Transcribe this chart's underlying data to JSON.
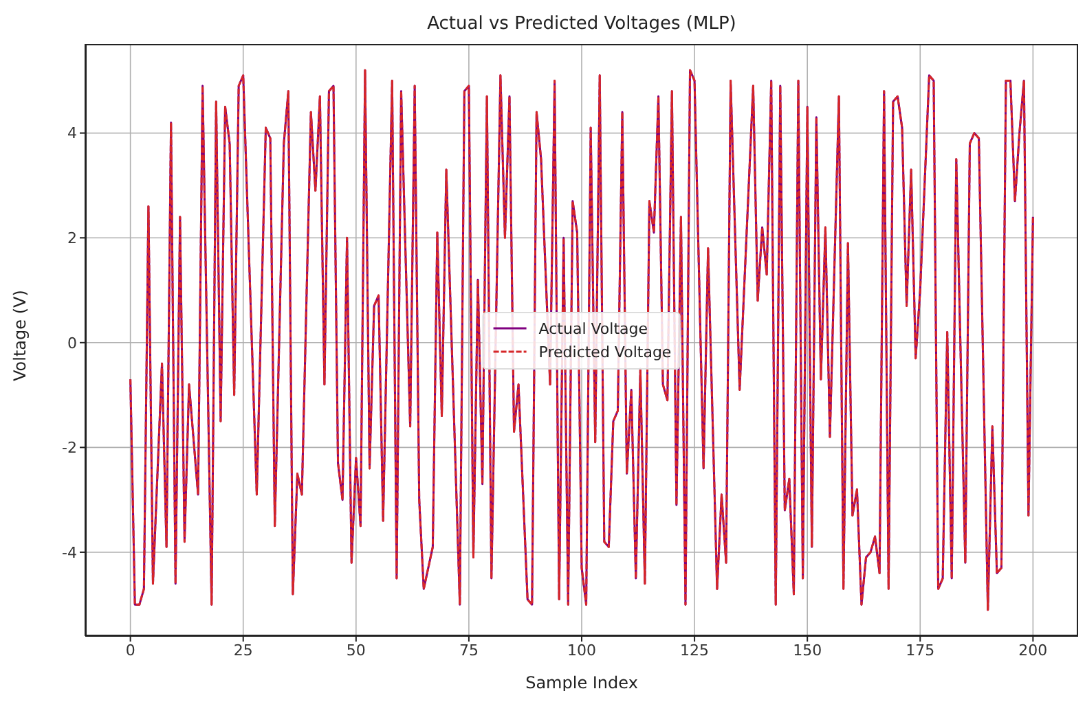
{
  "chart_data": {
    "type": "line",
    "title": "Actual vs Predicted Voltages (MLP)",
    "xlabel": "Sample Index",
    "ylabel": "Voltage (V)",
    "x": [
      0,
      1,
      2,
      3,
      4,
      5,
      7,
      8,
      9,
      10,
      11,
      12,
      13,
      15,
      16,
      18,
      19,
      20,
      21,
      22,
      23,
      24,
      25,
      28,
      30,
      31,
      32,
      34,
      35,
      36,
      37,
      38,
      40,
      41,
      42,
      43,
      44,
      45,
      46,
      47,
      48,
      49,
      50,
      51,
      52,
      53,
      54,
      55,
      56,
      58,
      59,
      60,
      62,
      63,
      64,
      65,
      67,
      68,
      69,
      70,
      73,
      74,
      75,
      76,
      77,
      78,
      79,
      80,
      82,
      83,
      84,
      85,
      86,
      88,
      89,
      90,
      91,
      93,
      94,
      95,
      96,
      97,
      98,
      99,
      100,
      101,
      102,
      103,
      104,
      105,
      106,
      107,
      108,
      109,
      110,
      111,
      112,
      113,
      114,
      115,
      116,
      117,
      118,
      119,
      120,
      121,
      122,
      123,
      124,
      125,
      127,
      128,
      130,
      131,
      132,
      133,
      135,
      138,
      139,
      140,
      141,
      142,
      143,
      144,
      145,
      146,
      147,
      148,
      149,
      150,
      151,
      152,
      153,
      154,
      155,
      157,
      158,
      159,
      160,
      161,
      162,
      163,
      164,
      165,
      166,
      167,
      168,
      169,
      170,
      171,
      172,
      173,
      174,
      175,
      177,
      178,
      179,
      180,
      181,
      182,
      183,
      185,
      186,
      187,
      188,
      190,
      191,
      192,
      193,
      194,
      195,
      196,
      197,
      198,
      199,
      200
    ],
    "series": [
      {
        "name": "Actual Voltage",
        "color": "#800080",
        "line_style": "solid",
        "values": [
          -0.7,
          -5.0,
          -5.0,
          -4.7,
          2.6,
          -4.6,
          -0.4,
          -3.9,
          4.2,
          -4.6,
          2.4,
          -3.8,
          -0.8,
          -2.9,
          4.9,
          -5.0,
          4.6,
          -1.5,
          4.5,
          3.8,
          -1.0,
          4.9,
          5.1,
          -2.9,
          4.1,
          3.9,
          -3.5,
          3.8,
          4.8,
          -4.8,
          -2.5,
          -2.9,
          4.4,
          2.9,
          4.7,
          -0.8,
          4.8,
          4.9,
          -2.3,
          -3.0,
          2.0,
          -4.2,
          -2.2,
          -3.5,
          5.2,
          -2.4,
          0.7,
          0.9,
          -3.4,
          5.0,
          -4.5,
          4.8,
          -1.6,
          4.9,
          -3.0,
          -4.7,
          -3.9,
          2.1,
          -1.4,
          3.3,
          -5.0,
          4.8,
          4.9,
          -4.1,
          1.2,
          -2.7,
          4.7,
          -4.5,
          5.1,
          2.0,
          4.7,
          -1.7,
          -0.8,
          -4.9,
          -5.0,
          4.4,
          3.5,
          -0.8,
          5.0,
          -4.9,
          2.0,
          -5.0,
          2.7,
          2.1,
          -4.3,
          -5.0,
          4.1,
          -1.9,
          5.1,
          -3.8,
          -3.9,
          -1.5,
          -1.3,
          4.4,
          -2.5,
          -0.9,
          -4.5,
          -0.5,
          -4.6,
          2.7,
          2.1,
          4.7,
          -0.8,
          -1.1,
          4.8,
          -3.1,
          2.4,
          -5.0,
          5.2,
          5.0,
          -2.4,
          1.8,
          -4.7,
          -2.9,
          -4.2,
          5.0,
          -0.9,
          4.9,
          0.8,
          2.2,
          1.3,
          5.0,
          -5.0,
          4.9,
          -3.2,
          -2.6,
          -4.8,
          5.0,
          -4.5,
          4.5,
          -3.9,
          4.3,
          -0.7,
          2.2,
          -1.8,
          4.7,
          -4.7,
          1.9,
          -3.3,
          -2.8,
          -5.0,
          -4.1,
          -4.0,
          -3.7,
          -4.4,
          4.8,
          -4.7,
          4.6,
          4.7,
          4.1,
          0.7,
          3.3,
          -0.3,
          1.0,
          5.1,
          5.0,
          -4.7,
          -4.5,
          0.2,
          -4.5,
          3.5,
          -4.2,
          3.8,
          4.0,
          3.9,
          -5.1,
          -1.6,
          -4.4,
          -4.3,
          5.0,
          5.0,
          2.7,
          4.0,
          5.0,
          -3.3,
          2.4
        ]
      },
      {
        "name": "Predicted Voltage",
        "color": "#d62728",
        "line_style": "dashed",
        "values": [
          -0.7,
          -5.0,
          -5.0,
          -4.7,
          2.6,
          -4.6,
          -0.4,
          -3.9,
          4.2,
          -4.6,
          2.4,
          -3.8,
          -0.8,
          -2.9,
          4.9,
          -5.0,
          4.6,
          -1.5,
          4.5,
          3.8,
          -1.0,
          4.9,
          5.1,
          -2.9,
          4.1,
          3.9,
          -3.5,
          3.8,
          4.8,
          -4.8,
          -2.5,
          -2.9,
          4.4,
          2.9,
          4.7,
          -0.8,
          4.8,
          4.9,
          -2.3,
          -3.0,
          2.0,
          -4.2,
          -2.2,
          -3.5,
          5.2,
          -2.4,
          0.7,
          0.9,
          -3.4,
          5.0,
          -4.5,
          4.8,
          -1.6,
          4.9,
          -3.0,
          -4.7,
          -3.9,
          2.1,
          -1.4,
          3.3,
          -5.0,
          4.8,
          4.9,
          -4.1,
          1.2,
          -2.7,
          4.7,
          -4.5,
          5.1,
          2.0,
          4.7,
          -1.7,
          -0.8,
          -4.9,
          -5.0,
          4.4,
          3.5,
          -0.8,
          5.0,
          -4.9,
          2.0,
          -5.0,
          2.7,
          2.1,
          -4.3,
          -5.0,
          4.1,
          -1.9,
          5.1,
          -3.8,
          -3.9,
          -1.5,
          -1.3,
          4.4,
          -2.5,
          -0.9,
          -4.5,
          -0.5,
          -4.6,
          2.7,
          2.1,
          4.7,
          -0.8,
          -1.1,
          4.8,
          -3.1,
          2.4,
          -5.0,
          5.2,
          5.0,
          -2.4,
          1.8,
          -4.7,
          -2.9,
          -4.2,
          5.0,
          -0.9,
          4.9,
          0.8,
          2.2,
          1.3,
          5.0,
          -5.0,
          4.9,
          -3.2,
          -2.6,
          -4.8,
          5.0,
          -4.5,
          4.5,
          -3.9,
          4.3,
          -0.7,
          2.2,
          -1.8,
          4.7,
          -4.7,
          1.9,
          -3.3,
          -2.8,
          -5.0,
          -4.1,
          -4.0,
          -3.7,
          -4.4,
          4.8,
          -4.7,
          4.6,
          4.7,
          4.1,
          0.7,
          3.3,
          -0.3,
          1.0,
          5.1,
          5.0,
          -4.7,
          -4.5,
          0.2,
          -4.5,
          3.5,
          -4.2,
          3.8,
          4.0,
          3.9,
          -5.1,
          -1.6,
          -4.4,
          -4.3,
          5.0,
          5.0,
          2.7,
          4.0,
          5.0,
          -3.3,
          2.4
        ]
      }
    ],
    "xlim": [
      -10,
      210
    ],
    "xticks": [
      0,
      25,
      50,
      75,
      100,
      125,
      150,
      175,
      200
    ],
    "ylim": [
      -5.6,
      5.7
    ],
    "yticks": [
      -4,
      -2,
      0,
      2,
      4
    ],
    "grid": true,
    "legend": "center",
    "marker": "none"
  }
}
